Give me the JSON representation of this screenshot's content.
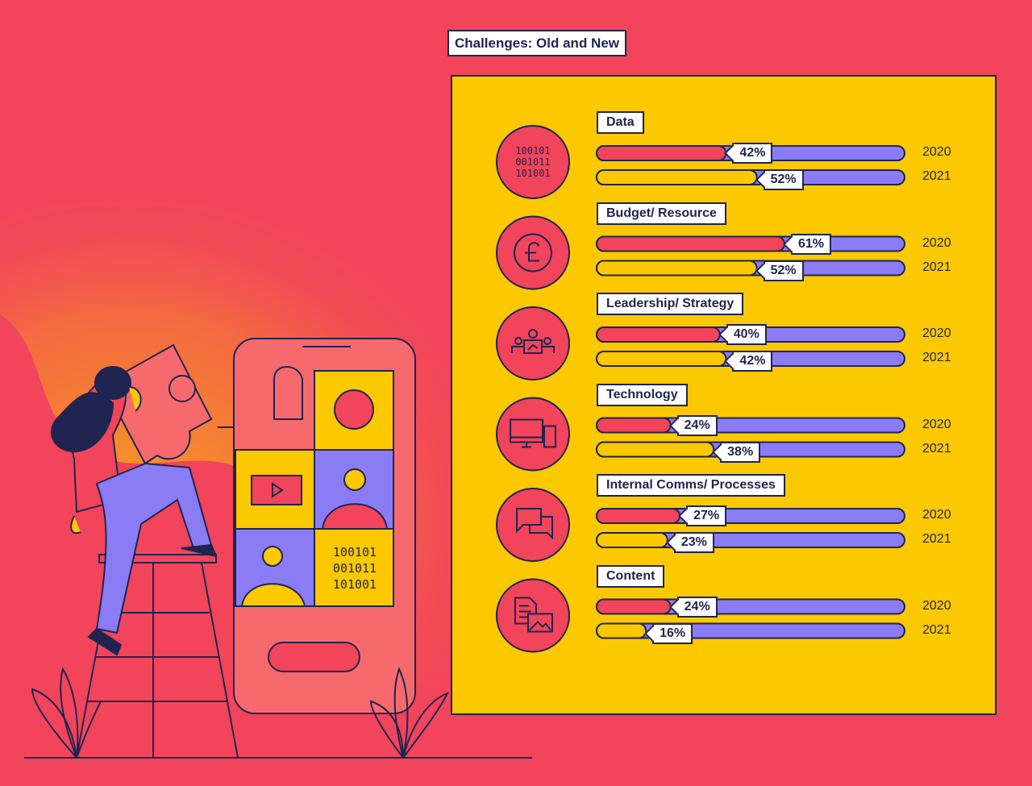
{
  "chart_data": {
    "type": "bar",
    "title": "Challenges: Old and New",
    "categories": [
      "Data",
      "Budget/ Resource",
      "Leadership/ Strategy",
      "Technology",
      "Internal Comms/ Processes",
      "Content"
    ],
    "series": [
      {
        "name": "2020",
        "values": [
          42,
          61,
          40,
          24,
          27,
          24
        ]
      },
      {
        "name": "2021",
        "values": [
          52,
          52,
          42,
          38,
          23,
          16
        ]
      }
    ],
    "ylim": [
      0,
      100
    ],
    "value_suffix": "%",
    "icons": [
      "binary-code-icon",
      "pound-coin-icon",
      "meeting-team-icon",
      "computer-devices-icon",
      "chat-bubbles-icon",
      "document-image-icon"
    ],
    "binary_text": [
      "100101",
      "001011",
      "101001"
    ],
    "colors": {
      "background": "#f2445a",
      "panel": "#fcc800",
      "series_2020": "#f2445a",
      "series_2021": "#fcc800",
      "track": "#8a7cf5",
      "ink": "#1f2450"
    }
  }
}
